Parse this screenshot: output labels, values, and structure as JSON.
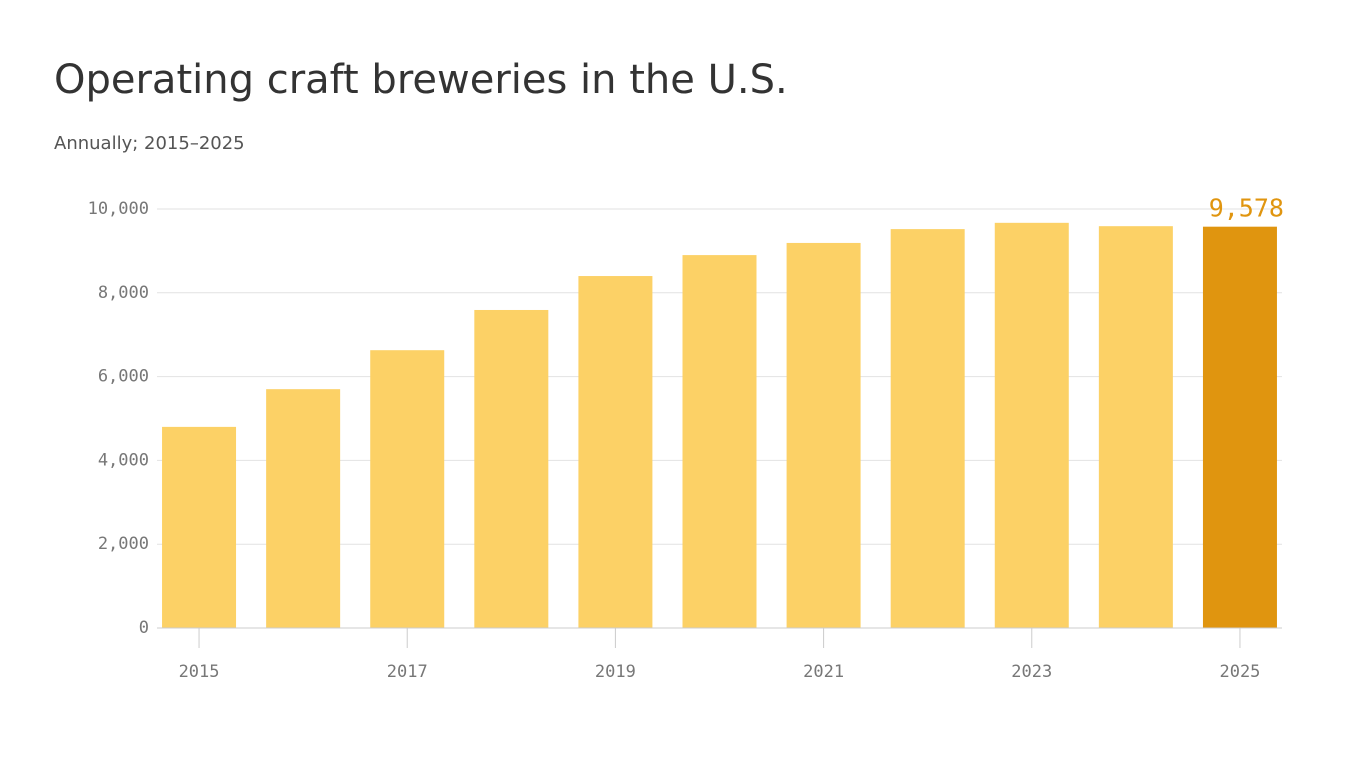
{
  "chart_data": {
    "type": "bar",
    "title": "Operating craft breweries in the U.S.",
    "subtitle": "Annually; 2015–2025",
    "categories": [
      "2015",
      null,
      "2017",
      null,
      "2019",
      null,
      "2021",
      null,
      "2023",
      null,
      "2025"
    ],
    "values": [
      4800,
      5700,
      6630,
      7590,
      8400,
      8900,
      9190,
      9520,
      9670,
      9590,
      9578
    ],
    "value_labels": [
      null,
      null,
      null,
      null,
      null,
      null,
      null,
      null,
      null,
      null,
      "9,578"
    ],
    "colors": [
      "#fcd166",
      "#fcd166",
      "#fcd166",
      "#fcd166",
      "#fcd166",
      "#fcd166",
      "#fcd166",
      "#fcd166",
      "#fcd166",
      "#fcd166",
      "#e0950f"
    ],
    "ylim": [
      0,
      10000
    ],
    "yticks": [
      0,
      {
        "value": 2000,
        "label": "2,000"
      },
      {
        "value": 4000,
        "label": "4,000"
      },
      {
        "value": 6000,
        "label": "6,000"
      },
      {
        "value": 8000,
        "label": "8,000"
      },
      {
        "value": 10000,
        "label": "10,000"
      }
    ],
    "grid": true
  }
}
